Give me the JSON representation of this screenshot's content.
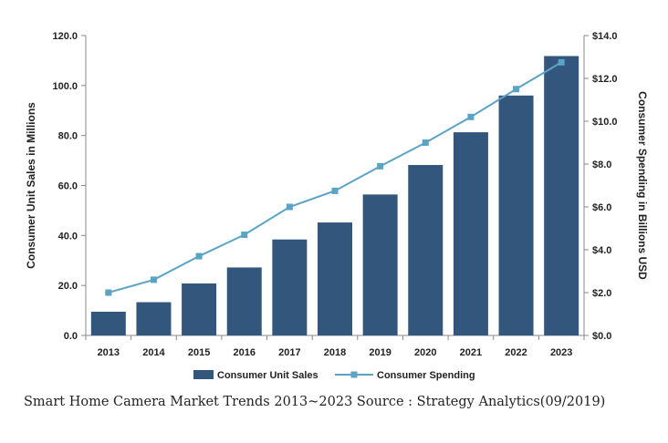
{
  "chart_data": {
    "type": "bar",
    "categories": [
      "2013",
      "2014",
      "2015",
      "2016",
      "2017",
      "2018",
      "2019",
      "2020",
      "2021",
      "2022",
      "2023"
    ],
    "series": [
      {
        "name": "Consumer Unit Sales",
        "type": "bar",
        "axis": "left",
        "color": "#33567D",
        "values": [
          9.5,
          13.3,
          20.8,
          27.2,
          38.4,
          45.2,
          56.4,
          68.2,
          81.3,
          96.0,
          111.8
        ]
      },
      {
        "name": "Consumer Spending",
        "type": "line",
        "axis": "right",
        "color": "#5BA3C4",
        "values": [
          2.0,
          2.6,
          3.7,
          4.7,
          6.0,
          6.75,
          7.9,
          9.0,
          10.2,
          11.5,
          12.75
        ]
      }
    ],
    "ylabel": "Consumer Unit Sales in Millions",
    "ylabel_right": "Consumer Spending in Billions USD",
    "ylim": [
      0,
      120
    ],
    "ylim_right": [
      0,
      14
    ],
    "y_ticks": [
      "0.0",
      "20.0",
      "40.0",
      "60.0",
      "80.0",
      "100.0",
      "120.0"
    ],
    "y_right_ticks": [
      "$0.0",
      "$2.0",
      "$4.0",
      "$6.0",
      "$8.0",
      "$10.0",
      "$12.0",
      "$14.0"
    ],
    "grid": false,
    "legend_position": "bottom"
  },
  "caption": "Smart Home Camera Market Trends 2013~2023   Source : Strategy Analytics(09/2019)"
}
